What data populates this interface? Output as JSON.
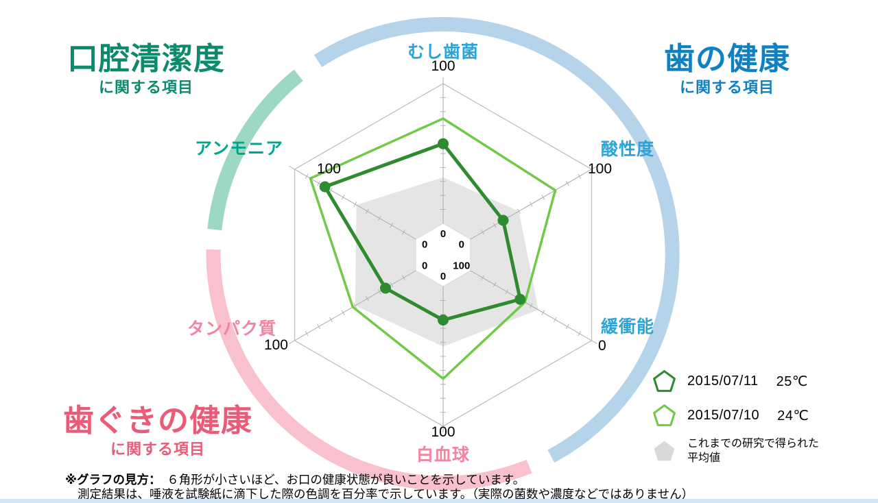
{
  "headings": {
    "top_left": {
      "title": "口腔清潔度",
      "subtitle": "に関する項目",
      "color": "#0b8a6e"
    },
    "top_right": {
      "title": "歯の健康",
      "subtitle": "に関する項目",
      "color": "#1180c2"
    },
    "bottom_left": {
      "title": "歯ぐきの健康",
      "subtitle": "に関する項目",
      "color": "#ea5b77"
    }
  },
  "chart_data": {
    "type": "radar",
    "description": "hexagonal saliva-test radar chart, smaller hexagon = healthier mouth",
    "scale": {
      "min": 0,
      "max": 100
    },
    "axes": [
      {
        "label": "むし歯菌",
        "outer_scale": "100",
        "inner_scale": "0",
        "reversed": false,
        "angle_deg": 270,
        "color": "#2aa4d9"
      },
      {
        "label": "酸性度",
        "outer_scale": "100",
        "inner_scale": "0",
        "reversed": false,
        "angle_deg": 330,
        "color": "#2aa4d9"
      },
      {
        "label": "緩衝能",
        "outer_scale": "0",
        "inner_scale": "100",
        "reversed": true,
        "angle_deg": 30,
        "color": "#2aa4d9"
      },
      {
        "label": "白血球",
        "outer_scale": "100",
        "inner_scale": "0",
        "reversed": false,
        "angle_deg": 90,
        "color": "#f2849e"
      },
      {
        "label": "タンパク質",
        "outer_scale": "100",
        "inner_scale": "0",
        "reversed": false,
        "angle_deg": 150,
        "color": "#f2849e"
      },
      {
        "label": "アンモニア",
        "outer_scale": "100",
        "inner_scale": "0",
        "reversed": false,
        "angle_deg": 210,
        "color": "#00a78e"
      }
    ],
    "series": [
      {
        "name": "2015/07/11",
        "temperature": "25℃",
        "color": "#2e8b2f",
        "style": "thick-line-with-dots",
        "values": [
          57,
          27,
          59,
          24,
          25,
          75
        ]
      },
      {
        "name": "2015/07/10",
        "temperature": "24℃",
        "color": "#6fca45",
        "style": "thin-line",
        "values": [
          75,
          70,
          55,
          66,
          52,
          87
        ]
      },
      {
        "name": "これまでの研究で得られた平均値",
        "color": "#e4e4e4",
        "style": "filled-gray",
        "values": [
          33,
          40,
          44,
          43,
          50,
          49
        ]
      }
    ]
  },
  "legend": {
    "average_line1": "これまでの研究で得られた",
    "average_line2": "平均値"
  },
  "note": {
    "heading": "※グラフの見方：　",
    "line1": "６角形が小さいほど、お口の健康状態が良いことを示しています。",
    "line2": "測定結果は、唾液を試験紙に滴下した際の色調を百分率で示しています。（実際の菌数や濃度などではありません）"
  },
  "colors": {
    "arc_teal": "#9dd8c5",
    "arc_blue": "#b5d4ea",
    "arc_pink": "#f9c0ce",
    "grid": "#bfbfbf",
    "bottom_strip": "#cfe8f5"
  }
}
